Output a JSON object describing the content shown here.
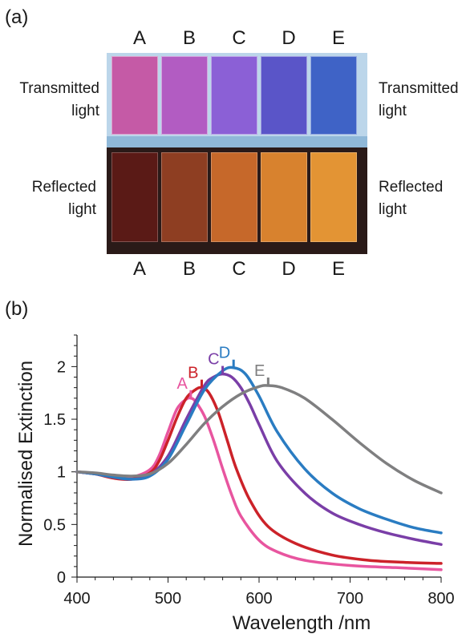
{
  "panel_a": {
    "label": "(a)",
    "columns_top": [
      "A",
      "B",
      "C",
      "D",
      "E"
    ],
    "columns_bottom": [
      "A",
      "B",
      "C",
      "D",
      "E"
    ],
    "left_labels": {
      "transmitted": [
        "Transmitted",
        "light"
      ],
      "reflected": [
        "Reflected",
        "light"
      ]
    },
    "right_labels": {
      "transmitted": [
        "Transmitted",
        "light"
      ],
      "reflected": [
        "Reflected",
        "light"
      ]
    },
    "vials": [
      {
        "name": "A",
        "transmitted_color": "#c55aa6",
        "reflected_color": "#5a1a16"
      },
      {
        "name": "B",
        "transmitted_color": "#b25cc2",
        "reflected_color": "#8e3e22"
      },
      {
        "name": "C",
        "transmitted_color": "#8b60d6",
        "reflected_color": "#c6682a"
      },
      {
        "name": "D",
        "transmitted_color": "#5a55c8",
        "reflected_color": "#d8822e"
      },
      {
        "name": "E",
        "transmitted_color": "#3f63c6",
        "reflected_color": "#e39434"
      }
    ]
  },
  "panel_b": {
    "label": "(b)"
  },
  "chart_data": {
    "type": "line",
    "xlabel": "Wavelength /nm",
    "ylabel": "Normalised Extinction",
    "xlim": [
      400,
      800
    ],
    "ylim": [
      0,
      2.3
    ],
    "xticks": [
      400,
      500,
      600,
      700,
      800
    ],
    "yticks": [
      0,
      0.5,
      1,
      1.5,
      2
    ],
    "grid": false,
    "legend": "inline labels at peaks",
    "series": [
      {
        "name": "A",
        "color": "#e8559f",
        "peak": [
          525,
          1.7
        ],
        "x": [
          400,
          420,
          440,
          460,
          480,
          490,
          500,
          510,
          520,
          525,
          530,
          540,
          550,
          560,
          570,
          580,
          600,
          620,
          650,
          700,
          750,
          800
        ],
        "y": [
          1.0,
          0.98,
          0.95,
          0.95,
          1.02,
          1.15,
          1.38,
          1.6,
          1.69,
          1.7,
          1.67,
          1.53,
          1.3,
          1.03,
          0.78,
          0.58,
          0.35,
          0.24,
          0.16,
          0.11,
          0.09,
          0.07
        ]
      },
      {
        "name": "B",
        "color": "#cc2229",
        "peak": [
          537,
          1.8
        ],
        "x": [
          400,
          420,
          440,
          460,
          480,
          490,
          500,
          510,
          520,
          530,
          537,
          545,
          555,
          565,
          575,
          590,
          610,
          640,
          680,
          720,
          760,
          800
        ],
        "y": [
          1.0,
          0.98,
          0.94,
          0.93,
          0.99,
          1.1,
          1.3,
          1.52,
          1.7,
          1.78,
          1.8,
          1.75,
          1.57,
          1.3,
          1.03,
          0.73,
          0.48,
          0.32,
          0.21,
          0.16,
          0.14,
          0.13
        ]
      },
      {
        "name": "C",
        "color": "#7a3ea7",
        "peak": [
          560,
          1.93
        ],
        "x": [
          400,
          420,
          440,
          460,
          480,
          500,
          520,
          540,
          550,
          560,
          570,
          580,
          590,
          600,
          620,
          650,
          680,
          710,
          740,
          770,
          800
        ],
        "y": [
          1.0,
          0.98,
          0.95,
          0.93,
          0.97,
          1.15,
          1.5,
          1.82,
          1.9,
          1.93,
          1.9,
          1.8,
          1.64,
          1.45,
          1.1,
          0.8,
          0.61,
          0.5,
          0.42,
          0.36,
          0.31
        ]
      },
      {
        "name": "D",
        "color": "#2a7cc2",
        "peak": [
          572,
          1.99
        ],
        "x": [
          400,
          420,
          440,
          460,
          480,
          500,
          520,
          540,
          560,
          572,
          585,
          600,
          620,
          650,
          680,
          710,
          740,
          770,
          800
        ],
        "y": [
          1.0,
          0.98,
          0.95,
          0.93,
          0.96,
          1.12,
          1.45,
          1.78,
          1.96,
          1.99,
          1.93,
          1.72,
          1.38,
          1.03,
          0.8,
          0.65,
          0.55,
          0.47,
          0.42
        ]
      },
      {
        "name": "E",
        "color": "#7f7f80",
        "peak": [
          610,
          1.82
        ],
        "x": [
          400,
          420,
          440,
          460,
          480,
          500,
          520,
          540,
          560,
          580,
          600,
          610,
          625,
          650,
          680,
          710,
          740,
          770,
          800
        ],
        "y": [
          1.0,
          0.99,
          0.97,
          0.96,
          0.98,
          1.08,
          1.26,
          1.46,
          1.62,
          1.74,
          1.81,
          1.82,
          1.8,
          1.7,
          1.5,
          1.28,
          1.08,
          0.92,
          0.8
        ]
      }
    ]
  }
}
